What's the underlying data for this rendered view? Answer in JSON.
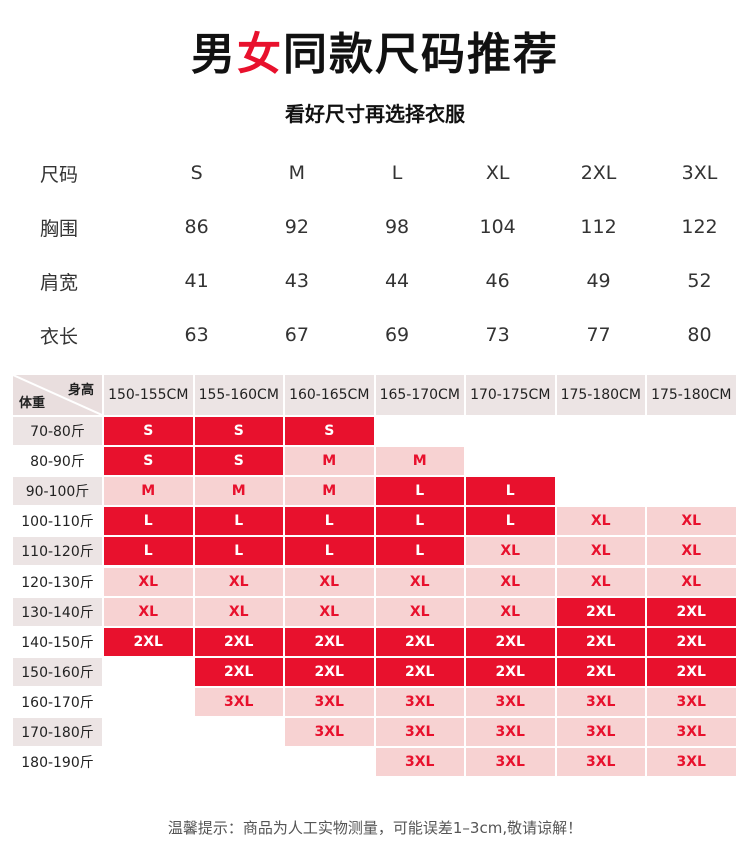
{
  "title": {
    "part1": "男",
    "accent": "女",
    "part2": "同款尺码推荐"
  },
  "subtitle": "看好尺寸再选择衣服",
  "spec": {
    "rows": [
      {
        "label": "尺码",
        "values": [
          "S",
          "M",
          "L",
          "XL",
          "2XL",
          "3XL"
        ]
      },
      {
        "label": "胸围",
        "values": [
          "86",
          "92",
          "98",
          "104",
          "112",
          "122"
        ]
      },
      {
        "label": "肩宽",
        "values": [
          "41",
          "43",
          "44",
          "46",
          "49",
          "52"
        ]
      },
      {
        "label": "衣长",
        "values": [
          "63",
          "67",
          "69",
          "73",
          "77",
          "80"
        ]
      }
    ]
  },
  "grid": {
    "corner_height_label": "身高",
    "corner_weight_label": "体重",
    "heights": [
      "150-155CM",
      "155-160CM",
      "160-165CM",
      "165-170CM",
      "170-175CM",
      "175-180CM",
      "175-180CM"
    ],
    "rows": [
      {
        "weight": "70-80斤",
        "cells": [
          [
            "S",
            "dark"
          ],
          [
            "S",
            "dark"
          ],
          [
            "S",
            "dark"
          ],
          null,
          null,
          null,
          null
        ]
      },
      {
        "weight": "80-90斤",
        "cells": [
          [
            "S",
            "dark"
          ],
          [
            "S",
            "dark"
          ],
          [
            "M",
            "light"
          ],
          [
            "M",
            "light"
          ],
          null,
          null,
          null
        ]
      },
      {
        "weight": "90-100斤",
        "cells": [
          [
            "M",
            "light"
          ],
          [
            "M",
            "light"
          ],
          [
            "M",
            "light"
          ],
          [
            "L",
            "dark"
          ],
          [
            "L",
            "dark"
          ],
          null,
          null
        ]
      },
      {
        "weight": "100-110斤",
        "cells": [
          [
            "L",
            "dark"
          ],
          [
            "L",
            "dark"
          ],
          [
            "L",
            "dark"
          ],
          [
            "L",
            "dark"
          ],
          [
            "L",
            "dark"
          ],
          [
            "XL",
            "light"
          ],
          [
            "XL",
            "light"
          ]
        ]
      },
      {
        "weight": "110-120斤",
        "cells": [
          [
            "L",
            "dark"
          ],
          [
            "L",
            "dark"
          ],
          [
            "L",
            "dark"
          ],
          [
            "L",
            "dark"
          ],
          [
            "XL",
            "light"
          ],
          [
            "XL",
            "light"
          ],
          [
            "XL",
            "light"
          ]
        ]
      },
      {
        "weight": "120-130斤",
        "cells": [
          [
            "XL",
            "light"
          ],
          [
            "XL",
            "light"
          ],
          [
            "XL",
            "light"
          ],
          [
            "XL",
            "light"
          ],
          [
            "XL",
            "light"
          ],
          [
            "XL",
            "light"
          ],
          [
            "XL",
            "light"
          ]
        ]
      },
      {
        "weight": "130-140斤",
        "cells": [
          [
            "XL",
            "light"
          ],
          [
            "XL",
            "light"
          ],
          [
            "XL",
            "light"
          ],
          [
            "XL",
            "light"
          ],
          [
            "XL",
            "light"
          ],
          [
            "2XL",
            "dark"
          ],
          [
            "2XL",
            "dark"
          ]
        ]
      },
      {
        "weight": "140-150斤",
        "cells": [
          [
            "2XL",
            "dark"
          ],
          [
            "2XL",
            "dark"
          ],
          [
            "2XL",
            "dark"
          ],
          [
            "2XL",
            "dark"
          ],
          [
            "2XL",
            "dark"
          ],
          [
            "2XL",
            "dark"
          ],
          [
            "2XL",
            "dark"
          ]
        ]
      },
      {
        "weight": "150-160斤",
        "cells": [
          null,
          [
            "2XL",
            "dark"
          ],
          [
            "2XL",
            "dark"
          ],
          [
            "2XL",
            "dark"
          ],
          [
            "2XL",
            "dark"
          ],
          [
            "2XL",
            "dark"
          ],
          [
            "2XL",
            "dark"
          ]
        ]
      },
      {
        "weight": "160-170斤",
        "cells": [
          null,
          [
            "3XL",
            "light"
          ],
          [
            "3XL",
            "light"
          ],
          [
            "3XL",
            "light"
          ],
          [
            "3XL",
            "light"
          ],
          [
            "3XL",
            "light"
          ],
          [
            "3XL",
            "light"
          ]
        ]
      },
      {
        "weight": "170-180斤",
        "cells": [
          null,
          null,
          [
            "3XL",
            "light"
          ],
          [
            "3XL",
            "light"
          ],
          [
            "3XL",
            "light"
          ],
          [
            "3XL",
            "light"
          ],
          [
            "3XL",
            "light"
          ]
        ]
      },
      {
        "weight": "180-190斤",
        "cells": [
          null,
          null,
          null,
          [
            "3XL",
            "light"
          ],
          [
            "3XL",
            "light"
          ],
          [
            "3XL",
            "light"
          ],
          [
            "3XL",
            "light"
          ]
        ]
      }
    ]
  },
  "colors": {
    "accent": "#e8112d",
    "light_fill": "#f7d2d2",
    "header_fill": "#ece4e4"
  },
  "footer": "温馨提示：商品为人工实物测量，可能误差1–3cm,敬请谅解！"
}
